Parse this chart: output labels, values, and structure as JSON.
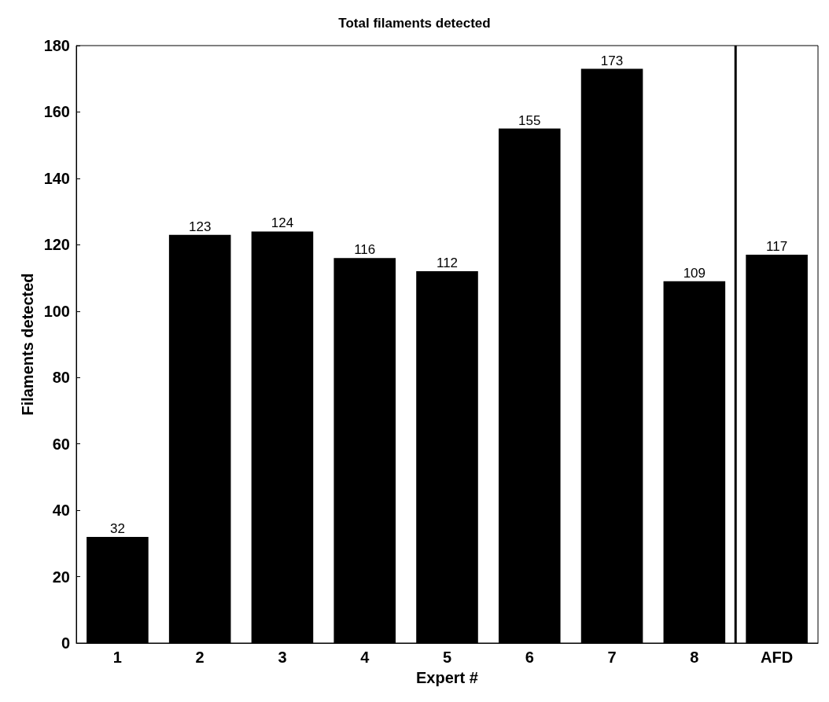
{
  "chart_data": {
    "type": "bar",
    "title": "Total filaments detected",
    "xlabel": "Expert #",
    "ylabel": "Filaments detected",
    "categories": [
      "1",
      "2",
      "3",
      "4",
      "5",
      "6",
      "7",
      "8",
      "AFD"
    ],
    "values": [
      32,
      123,
      124,
      116,
      112,
      155,
      173,
      109,
      117
    ],
    "color": "#000000",
    "ylim": [
      0,
      180
    ],
    "yticks": [
      0,
      20,
      40,
      60,
      80,
      100,
      120,
      140,
      160,
      180
    ],
    "grid": false,
    "data_labels": true
  }
}
